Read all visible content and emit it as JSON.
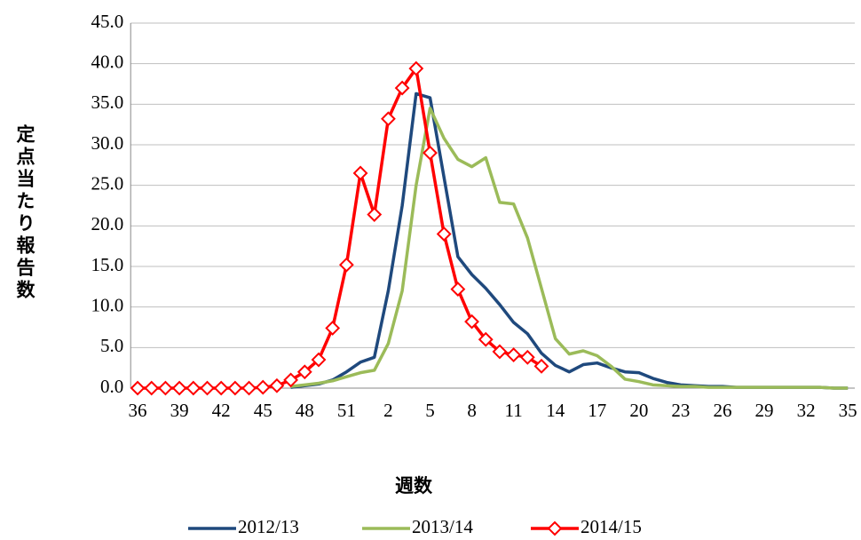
{
  "chart_data": {
    "type": "line",
    "y_label": "定点当たり報告数",
    "x_label": "週数",
    "categories": [
      "36",
      null,
      null,
      "39",
      null,
      null,
      "42",
      null,
      null,
      "45",
      null,
      null,
      "48",
      null,
      null,
      "51",
      null,
      null,
      "2",
      null,
      null,
      "5",
      null,
      null,
      "8",
      null,
      null,
      "11",
      null,
      null,
      "14",
      null,
      null,
      "17",
      null,
      null,
      "20",
      null,
      null,
      "23",
      null,
      null,
      "26",
      null,
      null,
      "29",
      null,
      null,
      "32",
      null,
      null,
      "35"
    ],
    "ylim": [
      0,
      45
    ],
    "yticks": [
      {
        "value": 0,
        "label": "0.0"
      },
      {
        "value": 5,
        "label": "5.0"
      },
      {
        "value": 10,
        "label": "10.0"
      },
      {
        "value": 15,
        "label": "15.0"
      },
      {
        "value": 20,
        "label": "20.0"
      },
      {
        "value": 25,
        "label": "25.0"
      },
      {
        "value": 30,
        "label": "30.0"
      },
      {
        "value": 35,
        "label": "35.0"
      },
      {
        "value": 40,
        "label": "40.0"
      },
      {
        "value": 45,
        "label": "45.0"
      }
    ],
    "grid": true,
    "legend": "bottom",
    "series": [
      {
        "name": "2012/13",
        "color": "#1f497d",
        "marker": false,
        "values": [
          null,
          null,
          null,
          null,
          null,
          null,
          null,
          null,
          null,
          null,
          null,
          0.1,
          0.3,
          0.5,
          1.0,
          2.0,
          3.2,
          3.8,
          12.0,
          22.5,
          36.3,
          35.8,
          26.0,
          16.2,
          14.0,
          12.3,
          10.3,
          8.1,
          6.7,
          4.3,
          2.8,
          2.0,
          2.9,
          3.1,
          2.5,
          2.0,
          1.9,
          1.2,
          0.7,
          0.4,
          0.3,
          0.2,
          0.2,
          0.1,
          0.1,
          0.1,
          0.1,
          0.1,
          0.1,
          0.1,
          0.0,
          0.0
        ]
      },
      {
        "name": "2013/14",
        "color": "#9bbb59",
        "marker": false,
        "values": [
          null,
          null,
          null,
          null,
          null,
          null,
          null,
          null,
          null,
          null,
          null,
          0.2,
          0.4,
          0.6,
          0.9,
          1.4,
          1.9,
          2.2,
          5.5,
          12.0,
          25.0,
          34.5,
          30.8,
          28.2,
          27.3,
          28.4,
          22.9,
          22.7,
          18.5,
          12.3,
          6.1,
          4.2,
          4.6,
          4.0,
          2.7,
          1.1,
          0.8,
          0.4,
          0.3,
          0.2,
          0.2,
          0.1,
          0.1,
          0.1,
          0.1,
          0.1,
          0.1,
          0.1,
          0.1,
          0.1,
          0.0,
          0.0
        ]
      },
      {
        "name": "2014/15",
        "color": "#ff0000",
        "marker": true,
        "values": [
          0.0,
          0.0,
          0.0,
          0.0,
          0.0,
          0.0,
          0.0,
          0.0,
          0.0,
          0.1,
          0.3,
          1.0,
          2.0,
          3.5,
          7.4,
          15.2,
          26.5,
          21.4,
          33.2,
          37.0,
          39.4,
          29.0,
          19.0,
          12.2,
          8.2,
          6.0,
          4.5,
          4.1,
          3.8,
          2.7,
          null,
          null,
          null,
          null,
          null,
          null,
          null,
          null,
          null,
          null,
          null,
          null,
          null,
          null,
          null,
          null,
          null,
          null,
          null,
          null,
          null,
          null
        ]
      }
    ]
  }
}
